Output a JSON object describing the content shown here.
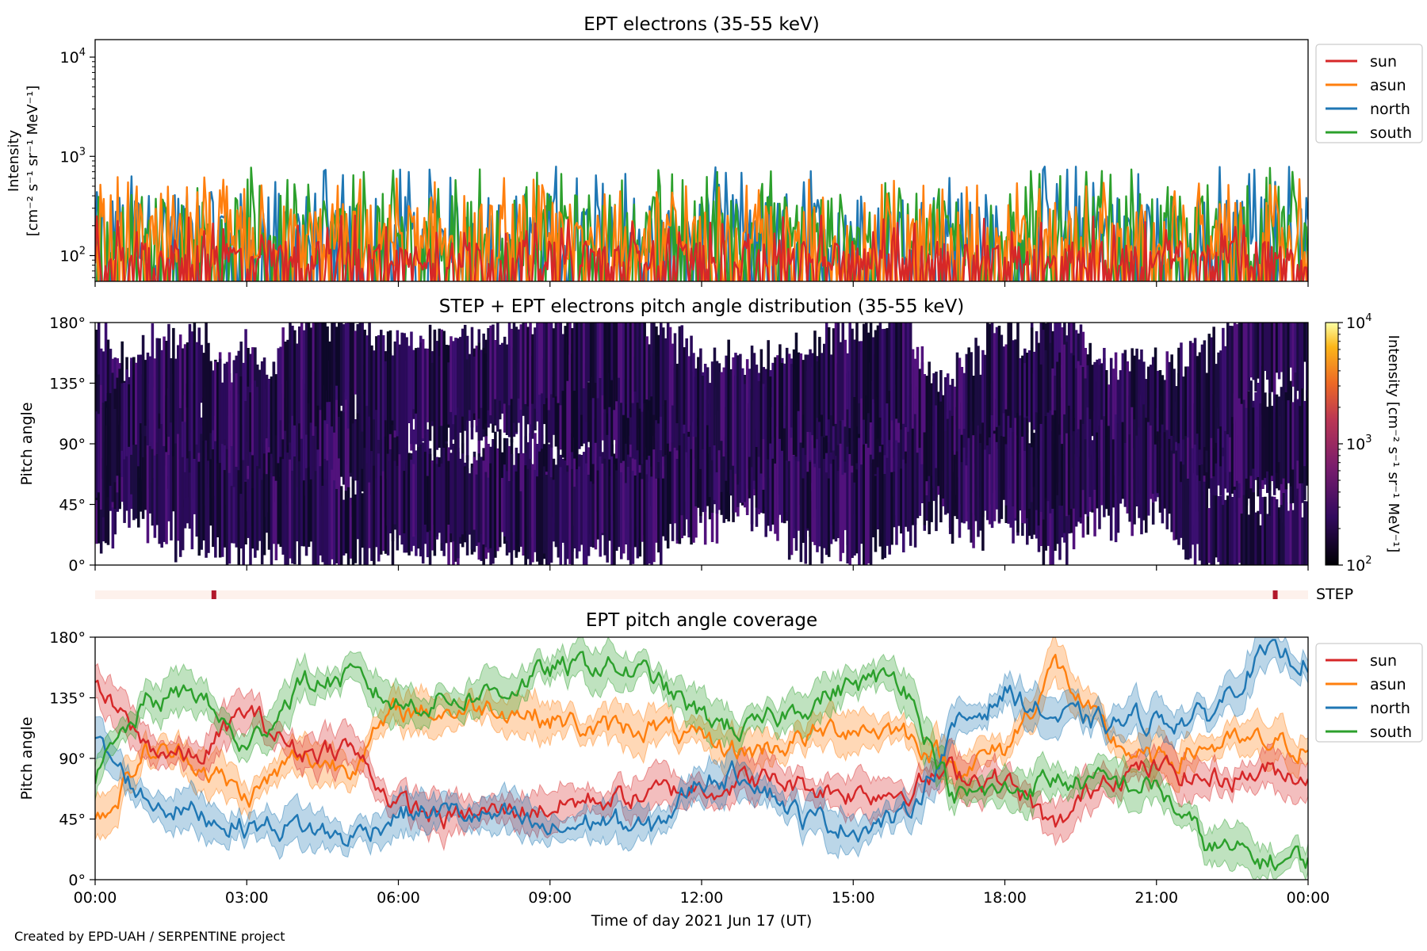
{
  "footer": "Created by EPD-UAH / SERPENTINE project",
  "xlabel": "Time of day 2021 Jun 17 (UT)",
  "xticks": [
    "00:00",
    "03:00",
    "06:00",
    "09:00",
    "12:00",
    "15:00",
    "18:00",
    "21:00",
    "00:00"
  ],
  "colors": {
    "sun": "#d62728",
    "asun": "#ff7f0e",
    "north": "#1f77b4",
    "south": "#2ca02c",
    "step_bar": "#fdf1ec",
    "step_mark": "#b2182b"
  },
  "chart_data": [
    {
      "type": "line",
      "title": "EPT electrons (35-55 keV)",
      "ylabel": [
        "Intensity",
        "[cm⁻² s⁻¹ sr⁻¹ MeV⁻¹]"
      ],
      "yscale": "log",
      "ylim": [
        55,
        15000
      ],
      "yticks": [
        {
          "v": 100,
          "b": "10",
          "e": "2"
        },
        {
          "v": 1000,
          "b": "10",
          "e": "3"
        },
        {
          "v": 10000,
          "b": "10",
          "e": "4"
        }
      ],
      "xlim_hours": [
        0,
        24
      ],
      "legend_position": "outside right",
      "legend": [
        "sun",
        "asun",
        "north",
        "south"
      ],
      "series": [
        {
          "name": "sun",
          "color": "#d62728",
          "typical_range": [
            55,
            260
          ]
        },
        {
          "name": "asun",
          "color": "#ff7f0e",
          "typical_range": [
            60,
            620
          ]
        },
        {
          "name": "north",
          "color": "#1f77b4",
          "typical_range": [
            60,
            800
          ]
        },
        {
          "name": "south",
          "color": "#2ca02c",
          "typical_range": [
            60,
            780
          ]
        }
      ]
    },
    {
      "type": "heatmap",
      "title": "STEP + EPT electrons pitch angle distribution (35-55 keV)",
      "ylabel": "Pitch angle",
      "ylim": [
        0,
        180
      ],
      "yticks": [
        "0°",
        "45°",
        "90°",
        "135°",
        "180°"
      ],
      "colorbar": {
        "label": "Intensity [cm⁻² s⁻¹ sr⁻¹ MeV⁻¹]",
        "scale": "log",
        "range": [
          100,
          10000
        ],
        "ticks": [
          {
            "b": "10",
            "e": "2"
          },
          {
            "b": "10",
            "e": "3"
          },
          {
            "b": "10",
            "e": "4"
          }
        ],
        "colormap": "inferno"
      },
      "step_label": "STEP",
      "step_marks_hours": [
        2.35,
        23.35
      ]
    },
    {
      "type": "area",
      "title": "EPT pitch angle coverage",
      "ylabel": "Pitch angle",
      "ylim": [
        0,
        180
      ],
      "yticks": [
        "0°",
        "45°",
        "90°",
        "135°",
        "180°"
      ],
      "legend_position": "outside right",
      "legend": [
        "sun",
        "asun",
        "north",
        "south"
      ],
      "x_hours": [
        0,
        1,
        2,
        3,
        4,
        5,
        6,
        7,
        8,
        9,
        10,
        11,
        12,
        13,
        14,
        15,
        16,
        17,
        18,
        19,
        20,
        21,
        22,
        23,
        24
      ],
      "series": [
        {
          "name": "sun",
          "color": "#d62728",
          "values": [
            140,
            100,
            88,
            125,
            95,
            100,
            55,
            45,
            50,
            55,
            60,
            62,
            70,
            75,
            70,
            65,
            68,
            80,
            75,
            35,
            80,
            82,
            75,
            80,
            80
          ]
        },
        {
          "name": "asun",
          "color": "#ff7f0e",
          "values": [
            40,
            95,
            90,
            60,
            90,
            85,
            125,
            125,
            130,
            120,
            110,
            115,
            100,
            95,
            105,
            115,
            110,
            85,
            95,
            160,
            105,
            85,
            100,
            100,
            100
          ]
        },
        {
          "name": "north",
          "color": "#1f77b4",
          "values": [
            100,
            60,
            50,
            40,
            40,
            30,
            50,
            50,
            45,
            35,
            45,
            35,
            75,
            80,
            45,
            40,
            45,
            110,
            140,
            120,
            115,
            120,
            120,
            165,
            165
          ]
        },
        {
          "name": "south",
          "color": "#2ca02c",
          "values": [
            75,
            130,
            140,
            95,
            145,
            150,
            130,
            135,
            140,
            155,
            160,
            150,
            120,
            110,
            130,
            145,
            150,
            60,
            65,
            75,
            70,
            70,
            25,
            15,
            15
          ]
        }
      ]
    }
  ]
}
